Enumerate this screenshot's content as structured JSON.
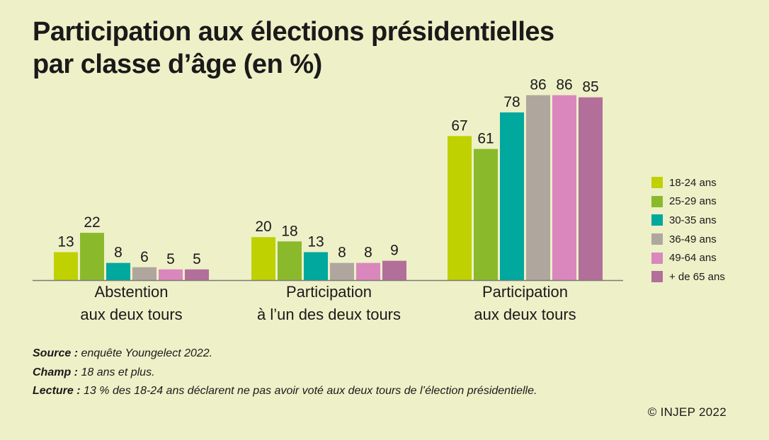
{
  "title_lines": [
    "Participation aux élections présidentielles",
    "par classe d’âge (en %)"
  ],
  "chart_data": {
    "type": "bar",
    "title": "Participation aux élections présidentielles par classe d’âge (en %)",
    "categories": [
      [
        "Abstention",
        "aux deux tours"
      ],
      [
        "Participation",
        "à l’un des deux tours"
      ],
      [
        "Participation",
        "aux deux tours"
      ]
    ],
    "series": [
      {
        "name": "18-24 ans",
        "color": "#bfd100",
        "values": [
          13,
          20,
          67
        ]
      },
      {
        "name": "25-29 ans",
        "color": "#8aba2c",
        "values": [
          22,
          18,
          61
        ]
      },
      {
        "name": "30-35 ans",
        "color": "#00a89d",
        "values": [
          8,
          13,
          78
        ]
      },
      {
        "name": "36-49 ans",
        "color": "#afa79d",
        "values": [
          6,
          8,
          86
        ]
      },
      {
        "name": "49-64 ans",
        "color": "#d987bd",
        "values": [
          5,
          8,
          86
        ]
      },
      {
        "name": "+ de 65 ans",
        "color": "#b26f9a",
        "values": [
          5,
          9,
          85
        ]
      }
    ],
    "ylim": [
      0,
      100
    ],
    "xlabel": "",
    "ylabel": "",
    "grid": false,
    "legend_position": "right"
  },
  "footnotes": {
    "source_label": "Source :",
    "source_text": " enquête Youngelect 2022.",
    "champ_label": "Champ :",
    "champ_text": " 18 ans et plus.",
    "lecture_label": "Lecture :",
    "lecture_text": " 13 % des 18-24 ans déclarent ne pas avoir voté aux deux tours de l’élection présidentielle."
  },
  "copyright": "© INJEP 2022"
}
